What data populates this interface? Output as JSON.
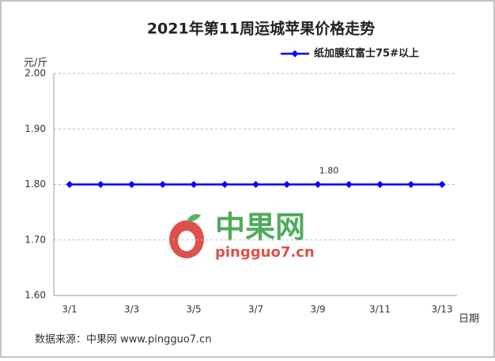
{
  "chart_data": {
    "type": "line",
    "title": "2021年第11周运城苹果价格走势",
    "y_label": "元/斤",
    "x_label": "日期",
    "categories": [
      "3/1",
      null,
      "3/3",
      null,
      "3/5",
      null,
      "3/7",
      null,
      "3/9",
      null,
      "3/11",
      null,
      "3/13"
    ],
    "series": [
      {
        "name": "纸加膜红富士75#以上",
        "color": "#0000ff",
        "values": [
          1.8,
          1.8,
          1.8,
          1.8,
          1.8,
          1.8,
          1.8,
          1.8,
          1.8,
          1.8,
          1.8,
          1.8,
          1.8
        ],
        "value_labels": [
          null,
          null,
          null,
          null,
          null,
          null,
          null,
          null,
          "1.80",
          null,
          null,
          null,
          null
        ]
      }
    ],
    "ylim": [
      1.6,
      2.0
    ],
    "yticks": [
      {
        "value": 1.6,
        "label": "1.60"
      },
      {
        "value": 1.7,
        "label": "1.70"
      },
      {
        "value": 1.8,
        "label": "1.80"
      },
      {
        "value": 1.9,
        "label": "1.90"
      },
      {
        "value": 2.0,
        "label": "2.00"
      }
    ],
    "grid": true,
    "legend": "top-right",
    "watermark": [
      "中果网",
      "pingguo7.cn"
    ],
    "source": "数据来源：中果网 www.pingguo7.cn"
  }
}
